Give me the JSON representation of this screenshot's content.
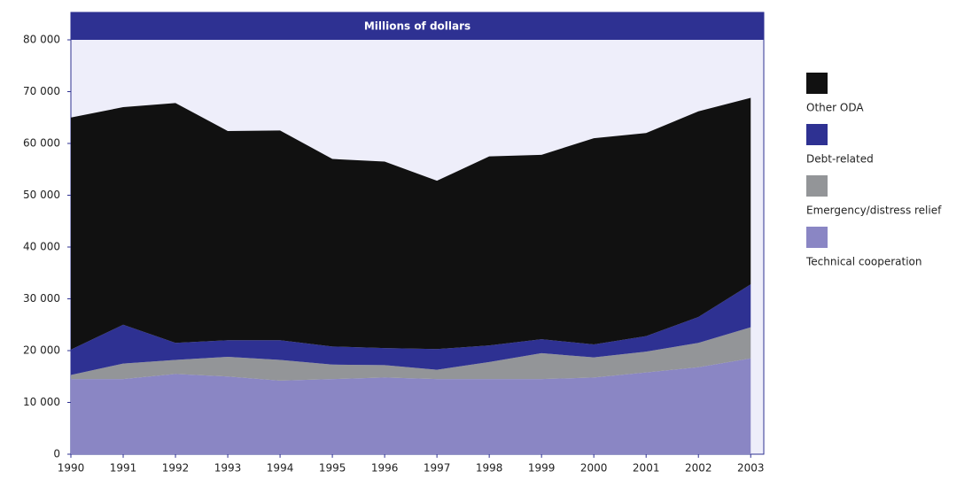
{
  "chart_data": {
    "type": "stacked_area",
    "subtitle": "Millions of dollars",
    "x": [
      1990,
      1991,
      1992,
      1993,
      1994,
      1995,
      1996,
      1997,
      1998,
      1999,
      2000,
      2001,
      2002,
      2003
    ],
    "series": [
      {
        "name": "Technical cooperation",
        "color": "#8a86c4",
        "values": [
          14500,
          14500,
          15500,
          15000,
          14200,
          14500,
          14800,
          14500,
          14500,
          14500,
          14800,
          15800,
          16800,
          18500
        ]
      },
      {
        "name": "Emergency/distress relief",
        "color": "#939598",
        "values": [
          800,
          3000,
          2700,
          3800,
          4000,
          2800,
          2400,
          1800,
          3300,
          5000,
          3900,
          4000,
          4700,
          6000
        ]
      },
      {
        "name": "Debt-related",
        "color": "#2e3192",
        "values": [
          4900,
          7500,
          3300,
          3200,
          3800,
          3500,
          3300,
          4000,
          3200,
          2700,
          2500,
          3000,
          5000,
          8300
        ]
      },
      {
        "name": "Other ODA",
        "color": "#111111",
        "values": [
          44800,
          42000,
          46300,
          40400,
          40500,
          36200,
          36000,
          32500,
          36500,
          35600,
          39800,
          39200,
          39700,
          36000
        ]
      }
    ],
    "xlim": [
      1990,
      2003.25
    ],
    "xticks": [
      1990,
      1991,
      1992,
      1993,
      1994,
      1995,
      1996,
      1997,
      1998,
      1999,
      2000,
      2001,
      2002,
      2003
    ],
    "ylim": [
      0,
      80000
    ],
    "yticks": [
      0,
      {
        "value": 10000,
        "label": "10 000"
      },
      {
        "value": 20000,
        "label": "20 000"
      },
      {
        "value": 30000,
        "label": "30 000"
      },
      {
        "value": 40000,
        "label": "40 000"
      },
      {
        "value": 50000,
        "label": "50 000"
      },
      {
        "value": 60000,
        "label": "60 000"
      },
      {
        "value": 70000,
        "label": "70 000"
      },
      {
        "value": 80000,
        "label": "80 000"
      }
    ],
    "legend": "right"
  }
}
